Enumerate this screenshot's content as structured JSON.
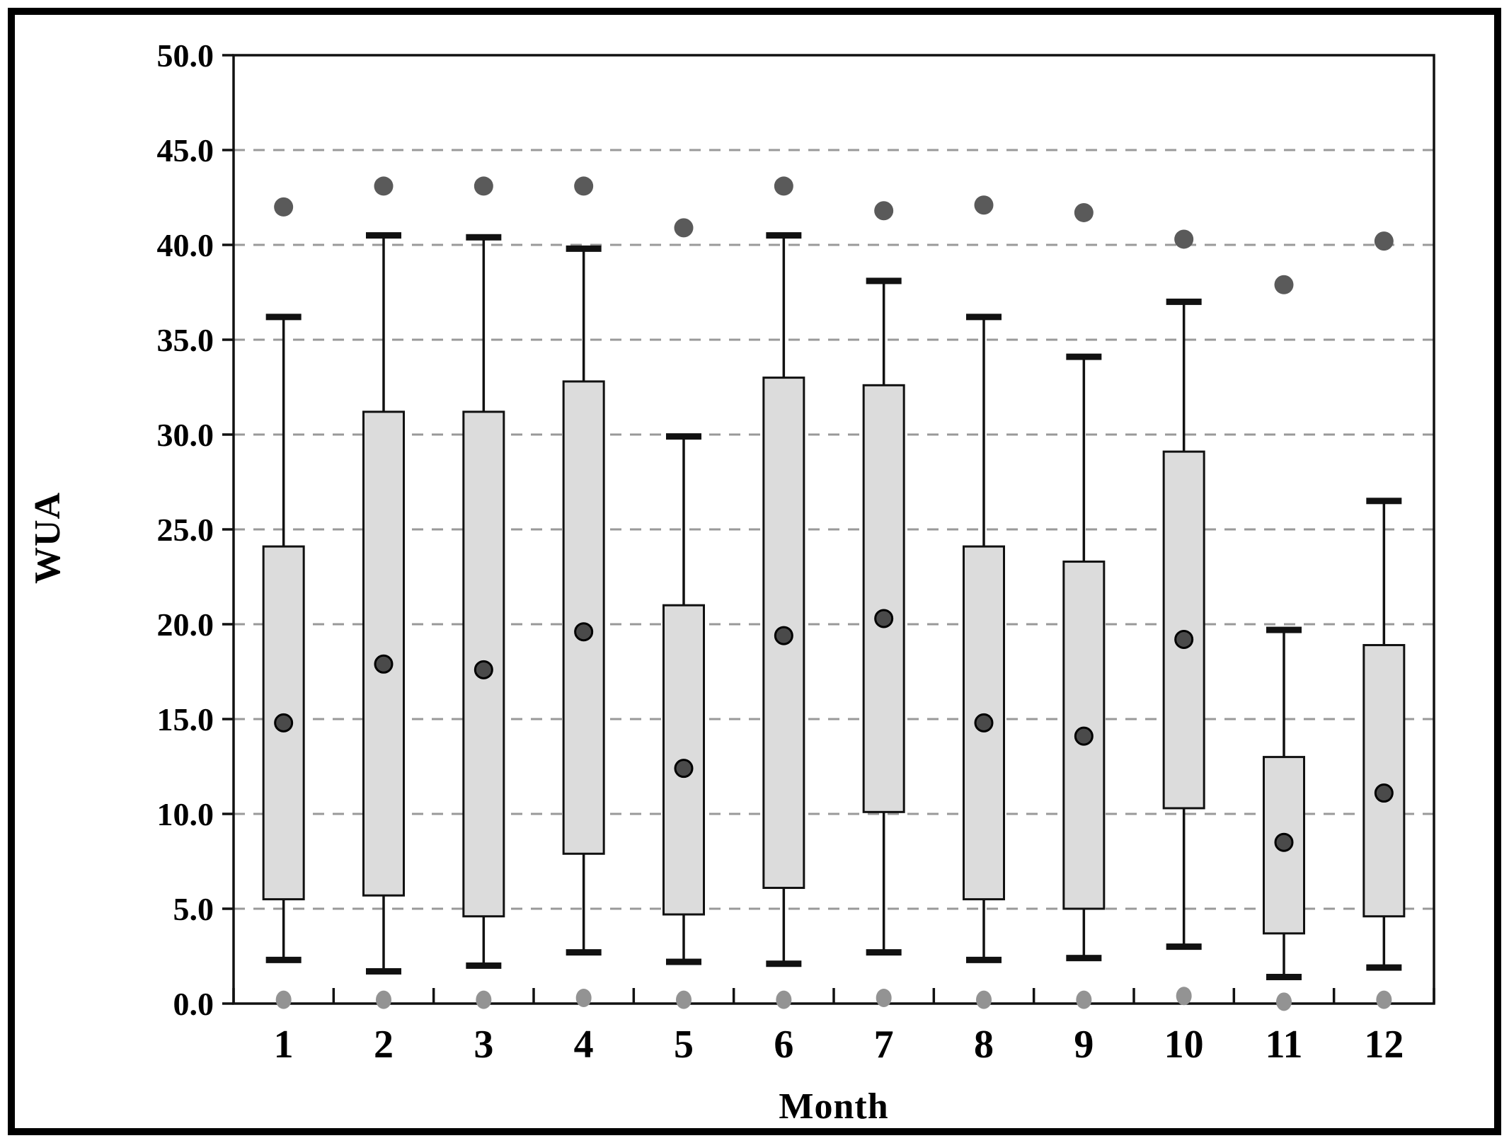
{
  "chart_data": {
    "type": "boxplot",
    "title": "",
    "xlabel": "Month",
    "ylabel": "WUA",
    "ylim": [
      0,
      50
    ],
    "ytick_interval": 5,
    "yticks": [
      {
        "value": 50,
        "label": "50.0"
      },
      {
        "value": 45,
        "label": "45.0"
      },
      {
        "value": 40,
        "label": "40.0"
      },
      {
        "value": 35,
        "label": "35.0"
      },
      {
        "value": 30,
        "label": "30.0"
      },
      {
        "value": 25,
        "label": "25.0"
      },
      {
        "value": 20,
        "label": "20.0"
      },
      {
        "value": 15,
        "label": "15.0"
      },
      {
        "value": 10,
        "label": "10.0"
      },
      {
        "value": 5,
        "label": "5.0"
      },
      {
        "value": 0,
        "label": "0.0"
      }
    ],
    "gridlines_at": [
      5,
      10,
      15,
      20,
      25,
      30,
      35,
      40,
      45
    ],
    "grid": "dashed-horizontal",
    "legend": "none",
    "months": [
      {
        "month": "1",
        "upper_dot": 42.0,
        "whisker_high": 36.2,
        "q3": 24.1,
        "median": 14.8,
        "q1": 5.5,
        "whisker_low": 2.3,
        "lower_dot": 0.2
      },
      {
        "month": "2",
        "upper_dot": 43.1,
        "whisker_high": 40.5,
        "q3": 31.2,
        "median": 17.9,
        "q1": 5.7,
        "whisker_low": 1.7,
        "lower_dot": 0.2
      },
      {
        "month": "3",
        "upper_dot": 43.1,
        "whisker_high": 40.4,
        "q3": 31.2,
        "median": 17.6,
        "q1": 4.6,
        "whisker_low": 2.0,
        "lower_dot": 0.2
      },
      {
        "month": "4",
        "upper_dot": 43.1,
        "whisker_high": 39.8,
        "q3": 32.8,
        "median": 19.6,
        "q1": 7.9,
        "whisker_low": 2.7,
        "lower_dot": 0.3
      },
      {
        "month": "5",
        "upper_dot": 40.9,
        "whisker_high": 29.9,
        "q3": 21.0,
        "median": 12.4,
        "q1": 4.7,
        "whisker_low": 2.2,
        "lower_dot": 0.2
      },
      {
        "month": "6",
        "upper_dot": 43.1,
        "whisker_high": 40.5,
        "q3": 33.0,
        "median": 19.4,
        "q1": 6.1,
        "whisker_low": 2.1,
        "lower_dot": 0.2
      },
      {
        "month": "7",
        "upper_dot": 41.8,
        "whisker_high": 38.1,
        "q3": 32.6,
        "median": 20.3,
        "q1": 10.1,
        "whisker_low": 2.7,
        "lower_dot": 0.3
      },
      {
        "month": "8",
        "upper_dot": 42.1,
        "whisker_high": 36.2,
        "q3": 24.1,
        "median": 14.8,
        "q1": 5.5,
        "whisker_low": 2.3,
        "lower_dot": 0.2
      },
      {
        "month": "9",
        "upper_dot": 41.7,
        "whisker_high": 34.1,
        "q3": 23.3,
        "median": 14.1,
        "q1": 5.0,
        "whisker_low": 2.4,
        "lower_dot": 0.2
      },
      {
        "month": "10",
        "upper_dot": 40.3,
        "whisker_high": 37.0,
        "q3": 29.1,
        "median": 19.2,
        "q1": 10.3,
        "whisker_low": 3.0,
        "lower_dot": 0.4
      },
      {
        "month": "11",
        "upper_dot": 37.9,
        "whisker_high": 19.7,
        "q3": 13.0,
        "median": 8.5,
        "q1": 3.7,
        "whisker_low": 1.4,
        "lower_dot": 0.1
      },
      {
        "month": "12",
        "upper_dot": 40.2,
        "whisker_high": 26.5,
        "q3": 18.9,
        "median": 11.1,
        "q1": 4.6,
        "whisker_low": 1.9,
        "lower_dot": 0.2
      }
    ]
  },
  "colors": {
    "box_fill": "#dcdcdc",
    "box_stroke": "#111111",
    "whisker_stroke": "#111111",
    "median_dot_fill": "#4a4a4a",
    "median_dot_stroke": "#000000",
    "upper_dot_fill": "#5a5a5a",
    "lower_dot_fill": "#939393",
    "gridline": "#999999",
    "axis_stroke": "#111111",
    "text": "#000000",
    "background": "#ffffff",
    "outer_border": "#000000"
  }
}
